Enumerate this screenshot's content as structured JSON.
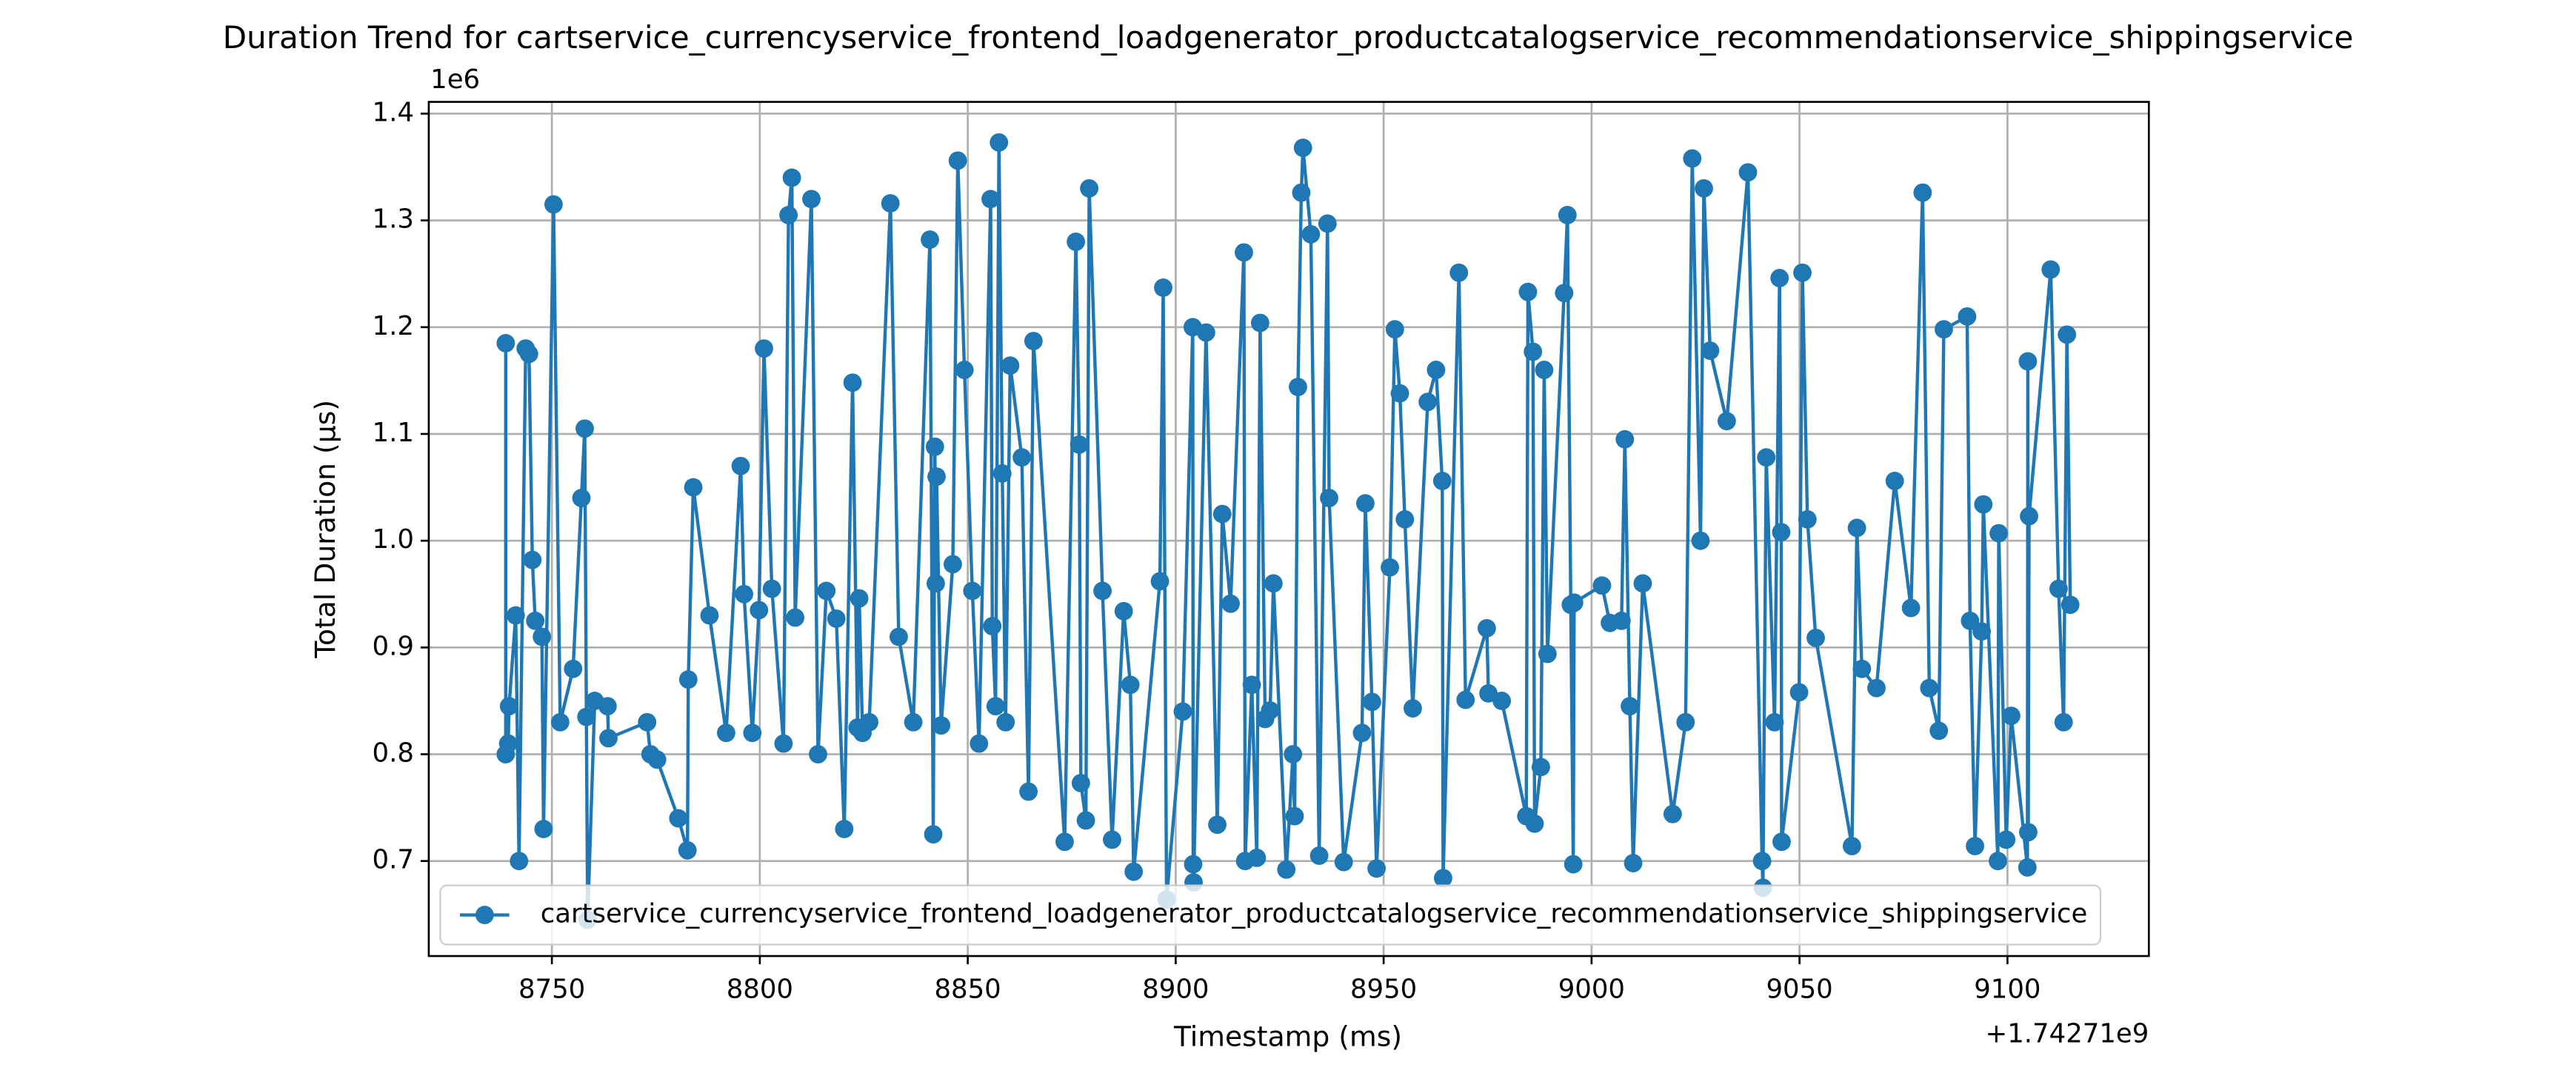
{
  "chart_data": {
    "type": "line",
    "title": "Duration Trend for cartservice_currencyservice_frontend_loadgenerator_productcatalogservice_recommendationservice_shippingservice",
    "x_label": "Timestamp (ms)",
    "y_label": "Total Duration (µs)",
    "x_offset_text": "+1.74271e9",
    "y_offset_text": "1e6",
    "legend_loc": "lower left",
    "grid": true,
    "xlim": [
      1742718720.4,
      1742719134.0
    ],
    "ylim": [
      611000,
      1411000
    ],
    "xticks": [
      {
        "value": 1742718750,
        "label": "8750"
      },
      {
        "value": 1742718800,
        "label": "8800"
      },
      {
        "value": 1742718850,
        "label": "8850"
      },
      {
        "value": 1742718900,
        "label": "8900"
      },
      {
        "value": 1742718950,
        "label": "8950"
      },
      {
        "value": 1742719000,
        "label": "9000"
      },
      {
        "value": 1742719050,
        "label": "9050"
      },
      {
        "value": 1742719100,
        "label": "9100"
      }
    ],
    "yticks": [
      {
        "value": 700000,
        "label": "0.7"
      },
      {
        "value": 800000,
        "label": "0.8"
      },
      {
        "value": 900000,
        "label": "0.9"
      },
      {
        "value": 1000000,
        "label": "1.0"
      },
      {
        "value": 1100000,
        "label": "1.1"
      },
      {
        "value": 1200000,
        "label": "1.2"
      },
      {
        "value": 1300000,
        "label": "1.3"
      },
      {
        "value": 1400000,
        "label": "1.4"
      }
    ],
    "series": [
      {
        "name": "cartservice_currencyservice_frontend_loadgenerator_productcatalogservice_recommendationservice_shippingservice",
        "color": "#1f77b4",
        "x": [
          1742718738.9,
          1742718738.9,
          1742718739.5,
          1742718739.7,
          1742718741.3,
          1742718742.1,
          1742718743.7,
          1742718744.5,
          1742718745.3,
          1742718746.0,
          1742718747.6,
          1742718748.0,
          1742718750.4,
          1742718752.0,
          1742718755.1,
          1742718757.1,
          1742718757.9,
          1742718758.3,
          1742718758.6,
          1742718760.3,
          1742718763.4,
          1742718763.6,
          1742718772.9,
          1742718773.7,
          1742718775.3,
          1742718780.4,
          1742718782.6,
          1742718782.8,
          1742718784.0,
          1742718787.9,
          1742718791.9,
          1742718795.4,
          1742718796.2,
          1742718798.2,
          1742718799.8,
          1742718801.0,
          1742718802.9,
          1742718805.7,
          1742718806.9,
          1742718807.7,
          1742718808.5,
          1742718812.4,
          1742718814.0,
          1742718816.0,
          1742718818.4,
          1742718820.3,
          1742718822.3,
          1742718823.5,
          1742718823.9,
          1742718824.7,
          1742718826.3,
          1742718831.4,
          1742718833.4,
          1742718836.9,
          1742718840.9,
          1742718841.7,
          1742718842.1,
          1742718842.3,
          1742718842.5,
          1742718843.6,
          1742718846.4,
          1742718847.6,
          1742718849.2,
          1742718851.1,
          1742718852.7,
          1742718855.5,
          1742718855.9,
          1742718856.7,
          1742718857.5,
          1742718858.3,
          1742718859.1,
          1742718860.2,
          1742718863.0,
          1742718864.6,
          1742718865.8,
          1742718873.3,
          1742718876.0,
          1742718876.8,
          1742718877.2,
          1742718878.4,
          1742718879.2,
          1742718882.4,
          1742718884.7,
          1742718887.5,
          1742718889.1,
          1742718889.9,
          1742718896.2,
          1742718897.0,
          1742718897.8,
          1742718901.7,
          1742718904.1,
          1742718904.2,
          1742718904.3,
          1742718907.3,
          1742718910.0,
          1742718911.2,
          1742718913.2,
          1742718916.4,
          1742718916.7,
          1742718918.3,
          1742718919.5,
          1742718920.3,
          1742718921.5,
          1742718922.7,
          1742718923.5,
          1742718926.6,
          1742718928.2,
          1742718928.6,
          1742718929.4,
          1742718930.2,
          1742718930.6,
          1742718932.5,
          1742718934.5,
          1742718936.5,
          1742718936.9,
          1742718940.4,
          1742718944.8,
          1742718945.6,
          1742718947.2,
          1742718948.3,
          1742718951.5,
          1742718952.7,
          1742718953.9,
          1742718955.1,
          1742718957.0,
          1742718960.6,
          1742718962.6,
          1742718964.1,
          1742718964.3,
          1742718968.1,
          1742718969.7,
          1742718974.8,
          1742718975.2,
          1742718978.4,
          1742718984.3,
          1742718984.7,
          1742718985.9,
          1742718986.3,
          1742718987.8,
          1742718988.6,
          1742718989.4,
          1742718993.4,
          1742718994.2,
          1742718995.0,
          1742718995.6,
          1742718995.8,
          1742719002.5,
          1742719004.4,
          1742719007.2,
          1742719008.0,
          1742719009.2,
          1742719010.0,
          1742719012.3,
          1742719019.5,
          1742719022.6,
          1742719024.2,
          1742719026.2,
          1742719027.0,
          1742719028.5,
          1742719032.5,
          1742719037.6,
          1742719041.0,
          1742719041.2,
          1742719042.0,
          1742719044.0,
          1742719045.2,
          1742719045.6,
          1742719045.7,
          1742719049.9,
          1742719050.7,
          1742719051.9,
          1742719053.9,
          1742719062.6,
          1742719063.8,
          1742719065.0,
          1742719068.5,
          1742719072.9,
          1742719076.8,
          1742719079.6,
          1742719081.2,
          1742719083.5,
          1742719084.7,
          1742719090.3,
          1742719091.0,
          1742719092.2,
          1742719093.8,
          1742719094.2,
          1742719097.7,
          1742719097.9,
          1742719099.7,
          1742719100.9,
          1742719104.8,
          1742719104.9,
          1742719105.0,
          1742719105.2,
          1742719110.4,
          1742719112.3,
          1742719113.5,
          1742719114.3,
          1742719115.1
        ],
        "values": [
          1185000,
          800000,
          810000,
          845000,
          930000,
          700000,
          1180000,
          1175000,
          982000,
          925000,
          910000,
          730000,
          1315000,
          830000,
          880000,
          1040000,
          1105000,
          835000,
          645000,
          850000,
          845000,
          815000,
          830000,
          800000,
          795000,
          740000,
          710000,
          870000,
          1050000,
          930000,
          820000,
          1070000,
          950000,
          820000,
          935000,
          1180000,
          955000,
          810000,
          1305000,
          1340000,
          928000,
          1320000,
          800000,
          953000,
          927000,
          730000,
          1148000,
          825000,
          946000,
          820000,
          830000,
          1316000,
          910000,
          830000,
          1282000,
          725000,
          1088000,
          960000,
          1060000,
          827000,
          978000,
          1356000,
          1160000,
          953000,
          810000,
          1320000,
          920000,
          845000,
          1373000,
          1063000,
          830000,
          1164000,
          1078000,
          765000,
          1187000,
          718000,
          1280000,
          1090000,
          773000,
          738000,
          1330000,
          953000,
          720000,
          934000,
          865000,
          690000,
          962000,
          1237000,
          664000,
          840000,
          1200000,
          697000,
          680000,
          1195000,
          734000,
          1025000,
          941000,
          1270000,
          700000,
          865000,
          703000,
          1204000,
          833000,
          841000,
          960000,
          692000,
          800000,
          742000,
          1144000,
          1326000,
          1368000,
          1287000,
          705000,
          1297000,
          1040000,
          699000,
          820000,
          1035000,
          849000,
          693000,
          975000,
          1198000,
          1138000,
          1020000,
          843000,
          1130000,
          1160000,
          1056000,
          684000,
          1251000,
          851000,
          918000,
          857000,
          850000,
          742000,
          1233000,
          1177000,
          735000,
          788000,
          1160000,
          894000,
          1232000,
          1305000,
          940000,
          697000,
          942000,
          958000,
          923000,
          925000,
          1095000,
          845000,
          698000,
          960000,
          744000,
          830000,
          1358000,
          1000000,
          1330000,
          1178000,
          1112000,
          1345000,
          700000,
          675000,
          1078000,
          830000,
          1246000,
          1008000,
          718000,
          858000,
          1251000,
          1020000,
          909000,
          714000,
          1012000,
          880000,
          862000,
          1056000,
          937000,
          1326000,
          862000,
          822000,
          1198000,
          1210000,
          925000,
          714000,
          915000,
          1034000,
          700000,
          1007000,
          720000,
          836000,
          694000,
          1168000,
          727000,
          1023000,
          1254000,
          955000,
          830000,
          1193000,
          940000
        ]
      }
    ]
  }
}
